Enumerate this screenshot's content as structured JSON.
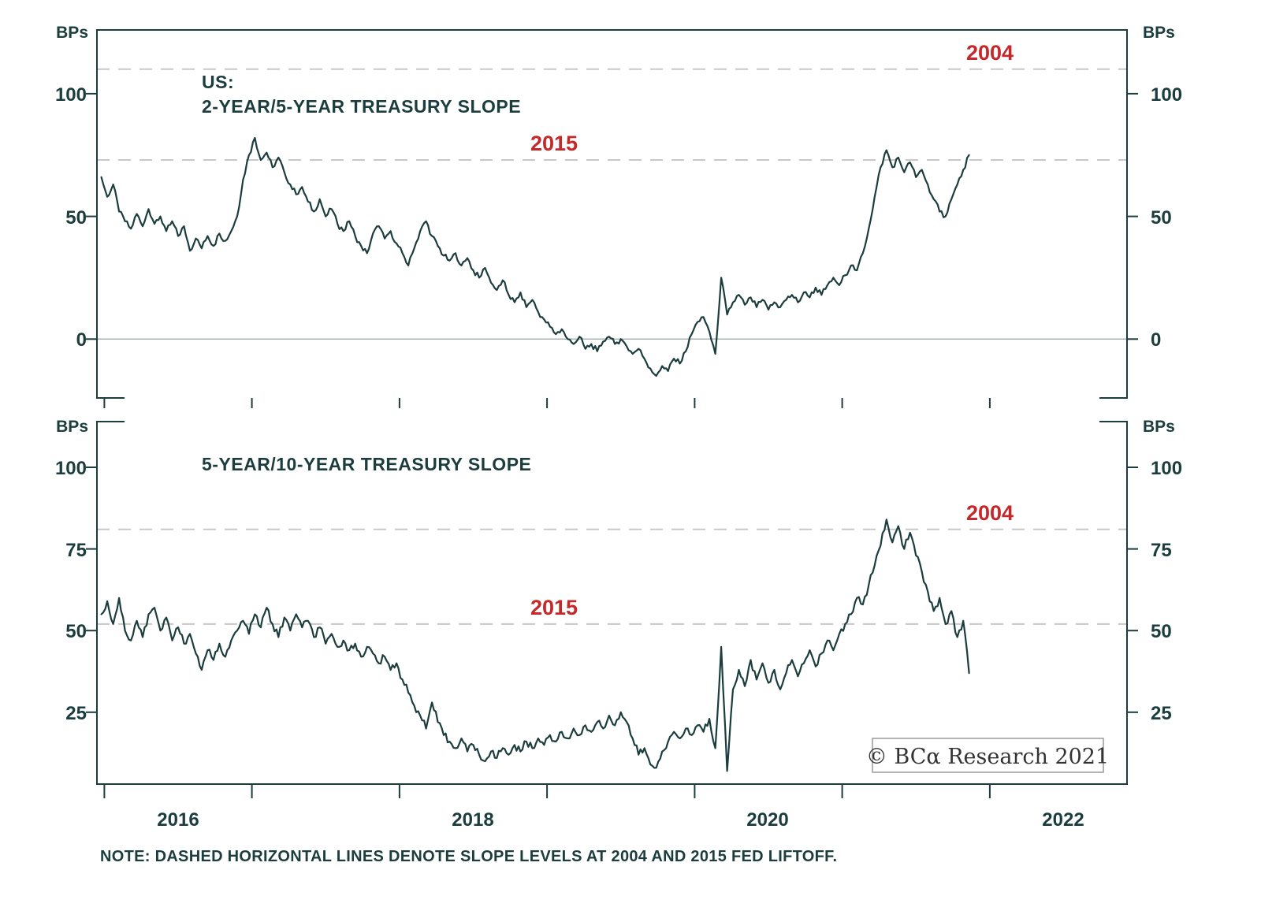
{
  "colors": {
    "line": "#1c3d3e",
    "text": "#1c3d3e",
    "accent_red": "#c5282a",
    "dashed_line": "#c8c8c8",
    "zero_line": "#a9b5b5",
    "frame": "#1c3d3e",
    "copyright_border": "#9a9a9a",
    "background": "#ffffff"
  },
  "note": "NOTE: DASHED HORIZONTAL LINES DENOTE SLOPE LEVELS AT 2004 AND 2015 FED LIFTOFF.",
  "copyright": "© BCα Research 2021",
  "chart_data": {
    "type": "line",
    "unit": "BPs",
    "x_axis": {
      "min": 2015.95,
      "max": 2022.93,
      "start": 2015.98,
      "step": 0.04,
      "tick_years": [
        2016,
        2017,
        2018,
        2019,
        2020,
        2021,
        2022
      ],
      "labels": [
        {
          "label": "2016",
          "x": 2016.5
        },
        {
          "label": "2018",
          "x": 2018.5
        },
        {
          "label": "2020",
          "x": 2020.5
        },
        {
          "label": "2022",
          "x": 2022.5
        }
      ]
    },
    "panels": [
      {
        "name": "us-2y-5y-treasury-slope",
        "title_line1": "US:",
        "title_line2": "2-YEAR/5-YEAR TREASURY SLOPE",
        "unit": "BPs",
        "ylim": [
          -24,
          126
        ],
        "yticks": [
          0,
          50,
          100
        ],
        "zero_line": 0,
        "reference_lines": [
          {
            "label": "2004",
            "value": 110
          },
          {
            "label": "2015",
            "value": 73
          }
        ],
        "series": {
          "name": "2-year/5-year treasury slope (bps)",
          "values": [
            66,
            58,
            63,
            52,
            48,
            45,
            51,
            46,
            53,
            47,
            50,
            44,
            48,
            42,
            46,
            36,
            41,
            37,
            42,
            38,
            43,
            40,
            44,
            50,
            65,
            75,
            82,
            73,
            76,
            70,
            74,
            68,
            63,
            59,
            62,
            56,
            52,
            57,
            50,
            53,
            47,
            44,
            48,
            42,
            38,
            35,
            43,
            46,
            41,
            44,
            39,
            35,
            30,
            37,
            44,
            48,
            42,
            38,
            34,
            32,
            35,
            30,
            33,
            28,
            25,
            29,
            23,
            20,
            24,
            18,
            15,
            19,
            13,
            16,
            11,
            8,
            5,
            2,
            4,
            0,
            -2,
            1,
            -4,
            -2,
            -5,
            -1,
            1,
            -2,
            0,
            -3,
            -6,
            -4,
            -8,
            -12,
            -15,
            -11,
            -13,
            -8,
            -10,
            -5,
            2,
            7,
            9,
            3,
            -6,
            25,
            10,
            15,
            18,
            14,
            17,
            13,
            16,
            12,
            15,
            13,
            16,
            18,
            15,
            19,
            17,
            21,
            18,
            22,
            25,
            22,
            26,
            30,
            28,
            35,
            45,
            58,
            70,
            77,
            70,
            74,
            68,
            72,
            66,
            69,
            63,
            57,
            52,
            50,
            57,
            63,
            69,
            75
          ]
        }
      },
      {
        "name": "us-5y-10y-treasury-slope",
        "title_line1": "5-YEAR/10-YEAR TREASURY SLOPE",
        "unit": "BPs",
        "ylim": [
          3,
          114
        ],
        "yticks": [
          25,
          50,
          75,
          100
        ],
        "reference_lines": [
          {
            "label": "2004",
            "value": 81
          },
          {
            "label": "2015",
            "value": 52
          }
        ],
        "series": {
          "name": "5-year/10-year treasury slope (bps)",
          "values": [
            55,
            59,
            52,
            60,
            50,
            47,
            53,
            48,
            55,
            57,
            50,
            54,
            47,
            51,
            46,
            49,
            43,
            38,
            44,
            41,
            46,
            42,
            47,
            50,
            53,
            49,
            55,
            51,
            57,
            52,
            48,
            54,
            50,
            55,
            51,
            53,
            48,
            51,
            46,
            49,
            45,
            47,
            44,
            46,
            42,
            45,
            43,
            40,
            42,
            38,
            40,
            35,
            31,
            27,
            24,
            20,
            28,
            22,
            18,
            16,
            14,
            17,
            13,
            15,
            12,
            10,
            13,
            11,
            14,
            12,
            15,
            13,
            16,
            14,
            17,
            15,
            18,
            16,
            19,
            17,
            20,
            18,
            21,
            19,
            22,
            20,
            24,
            21,
            25,
            22,
            17,
            12,
            14,
            9,
            8,
            13,
            16,
            19,
            17,
            20,
            18,
            21,
            19,
            23,
            14,
            45,
            7,
            32,
            38,
            33,
            41,
            35,
            40,
            34,
            38,
            32,
            37,
            41,
            36,
            40,
            44,
            39,
            43,
            47,
            44,
            49,
            52,
            55,
            60,
            58,
            64,
            70,
            76,
            84,
            77,
            82,
            75,
            80,
            73,
            68,
            62,
            56,
            60,
            52,
            56,
            48,
            53,
            37
          ]
        }
      }
    ]
  }
}
